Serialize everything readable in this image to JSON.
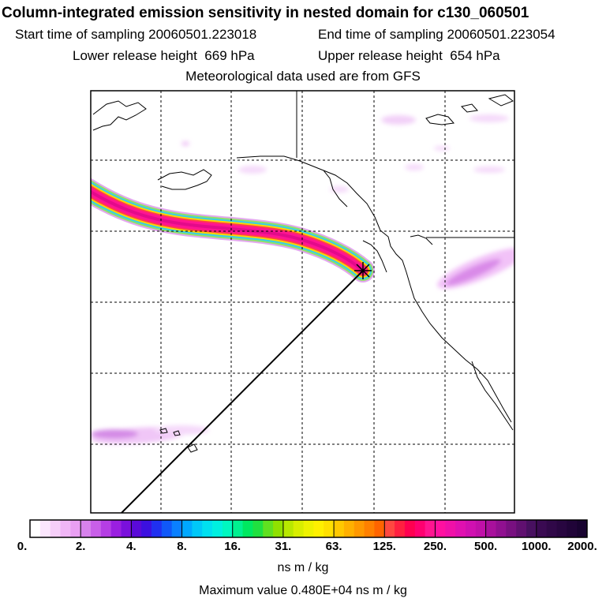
{
  "title": "Column-integrated emission sensitivity in nested domain for c130_060501",
  "start_label": "Start time of sampling",
  "start_value": "20060501.223018",
  "end_label": "End time of sampling",
  "end_value": "20060501.223054",
  "lower_label": "Lower release height",
  "lower_value": "669 hPa",
  "upper_label": "Upper release height",
  "upper_value": "654 hPa",
  "met_text": "Meteorological data used are from GFS",
  "colorbar": {
    "ticks": [
      "0.",
      "2.",
      "4.",
      "8.",
      "16.",
      "31.",
      "63.",
      "125.",
      "250.",
      "500.",
      "1000.",
      "2000."
    ],
    "units": "ns m / kg"
  },
  "max_text": "Maximum value  0.480E+04 ns m / kg"
}
